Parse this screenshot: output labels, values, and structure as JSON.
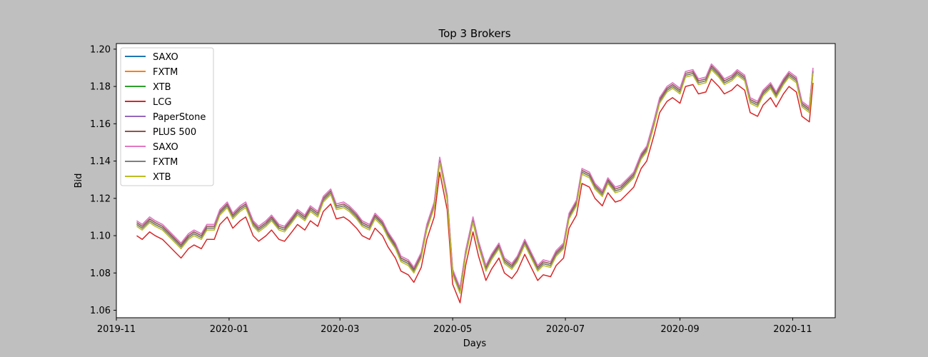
{
  "chart_data": {
    "type": "line",
    "title": "Top 3 Brokers",
    "xlabel": "Days",
    "ylabel": "Bid",
    "xlim": [
      "2019-11-01",
      "2020-11-24"
    ],
    "ylim": [
      1.056,
      1.203
    ],
    "xticks": [
      "2019-11",
      "2020-01",
      "2020-03",
      "2020-05",
      "2020-07",
      "2020-09",
      "2020-11"
    ],
    "yticks": [
      "1.06",
      "1.08",
      "1.10",
      "1.12",
      "1.14",
      "1.16",
      "1.18",
      "1.20"
    ],
    "grid": false,
    "legend_position": "top-left",
    "base_series": {
      "x": [
        "2019-11-12",
        "2019-11-15",
        "2019-11-19",
        "2019-11-22",
        "2019-11-26",
        "2019-11-29",
        "2019-12-03",
        "2019-12-06",
        "2019-12-10",
        "2019-12-13",
        "2019-12-17",
        "2019-12-20",
        "2019-12-24",
        "2019-12-27",
        "2019-12-31",
        "2020-01-03",
        "2020-01-07",
        "2020-01-10",
        "2020-01-14",
        "2020-01-17",
        "2020-01-21",
        "2020-01-24",
        "2020-01-28",
        "2020-01-31",
        "2020-02-04",
        "2020-02-07",
        "2020-02-11",
        "2020-02-14",
        "2020-02-18",
        "2020-02-21",
        "2020-02-25",
        "2020-02-28",
        "2020-03-03",
        "2020-03-06",
        "2020-03-10",
        "2020-03-13",
        "2020-03-17",
        "2020-03-20",
        "2020-03-24",
        "2020-03-27",
        "2020-03-31",
        "2020-04-03",
        "2020-04-07",
        "2020-04-10",
        "2020-04-14",
        "2020-04-17",
        "2020-04-21",
        "2020-04-24",
        "2020-04-28",
        "2020-05-01",
        "2020-05-05",
        "2020-05-08",
        "2020-05-12",
        "2020-05-15",
        "2020-05-19",
        "2020-05-22",
        "2020-05-26",
        "2020-05-29",
        "2020-06-02",
        "2020-06-05",
        "2020-06-09",
        "2020-06-12",
        "2020-06-16",
        "2020-06-19",
        "2020-06-23",
        "2020-06-26",
        "2020-06-30",
        "2020-07-03",
        "2020-07-07",
        "2020-07-10",
        "2020-07-14",
        "2020-07-17",
        "2020-07-21",
        "2020-07-24",
        "2020-07-28",
        "2020-07-31",
        "2020-08-04",
        "2020-08-07",
        "2020-08-11",
        "2020-08-14",
        "2020-08-18",
        "2020-08-21",
        "2020-08-25",
        "2020-08-28",
        "2020-09-01",
        "2020-09-04",
        "2020-09-08",
        "2020-09-11",
        "2020-09-15",
        "2020-09-18",
        "2020-09-22",
        "2020-09-25",
        "2020-09-29",
        "2020-10-02",
        "2020-10-06",
        "2020-10-09",
        "2020-10-13",
        "2020-10-16",
        "2020-10-20",
        "2020-10-23",
        "2020-10-27",
        "2020-10-30",
        "2020-11-03",
        "2020-11-06",
        "2020-11-10",
        "2020-11-12"
      ],
      "values": [
        1.106,
        1.104,
        1.108,
        1.106,
        1.104,
        1.101,
        1.097,
        1.094,
        1.099,
        1.101,
        1.099,
        1.104,
        1.104,
        1.112,
        1.116,
        1.11,
        1.114,
        1.116,
        1.106,
        1.103,
        1.106,
        1.109,
        1.104,
        1.103,
        1.108,
        1.112,
        1.109,
        1.114,
        1.111,
        1.119,
        1.123,
        1.115,
        1.116,
        1.114,
        1.11,
        1.106,
        1.104,
        1.11,
        1.106,
        1.1,
        1.094,
        1.087,
        1.085,
        1.081,
        1.089,
        1.104,
        1.116,
        1.14,
        1.12,
        1.08,
        1.07,
        1.09,
        1.108,
        1.095,
        1.082,
        1.088,
        1.094,
        1.086,
        1.083,
        1.087,
        1.096,
        1.09,
        1.082,
        1.085,
        1.084,
        1.09,
        1.094,
        1.11,
        1.117,
        1.134,
        1.132,
        1.126,
        1.122,
        1.129,
        1.124,
        1.125,
        1.129,
        1.132,
        1.142,
        1.146,
        1.16,
        1.172,
        1.178,
        1.18,
        1.177,
        1.186,
        1.187,
        1.182,
        1.183,
        1.19,
        1.186,
        1.182,
        1.184,
        1.187,
        1.184,
        1.172,
        1.17,
        1.176,
        1.18,
        1.175,
        1.182,
        1.186,
        1.183,
        1.17,
        1.167,
        1.188
      ]
    },
    "series": [
      {
        "name": "SAXO",
        "color": "#1f77b4",
        "offset": 0.0
      },
      {
        "name": "FXTM",
        "color": "#ff7f0e",
        "offset": 0.0
      },
      {
        "name": "XTB",
        "color": "#2ca02c",
        "offset": 0.0
      },
      {
        "name": "LCG",
        "color": "#d62728",
        "offset": -0.006
      },
      {
        "name": "PaperStone",
        "color": "#9467bd",
        "offset": 0.002
      },
      {
        "name": "PLUS 500",
        "color": "#8c564b",
        "offset": 0.001
      },
      {
        "name": "SAXO",
        "color": "#e377c2",
        "offset": 0.002
      },
      {
        "name": "FXTM",
        "color": "#7f7f7f",
        "offset": 0.0
      },
      {
        "name": "XTB",
        "color": "#bcbd22",
        "offset": -0.001
      }
    ]
  }
}
